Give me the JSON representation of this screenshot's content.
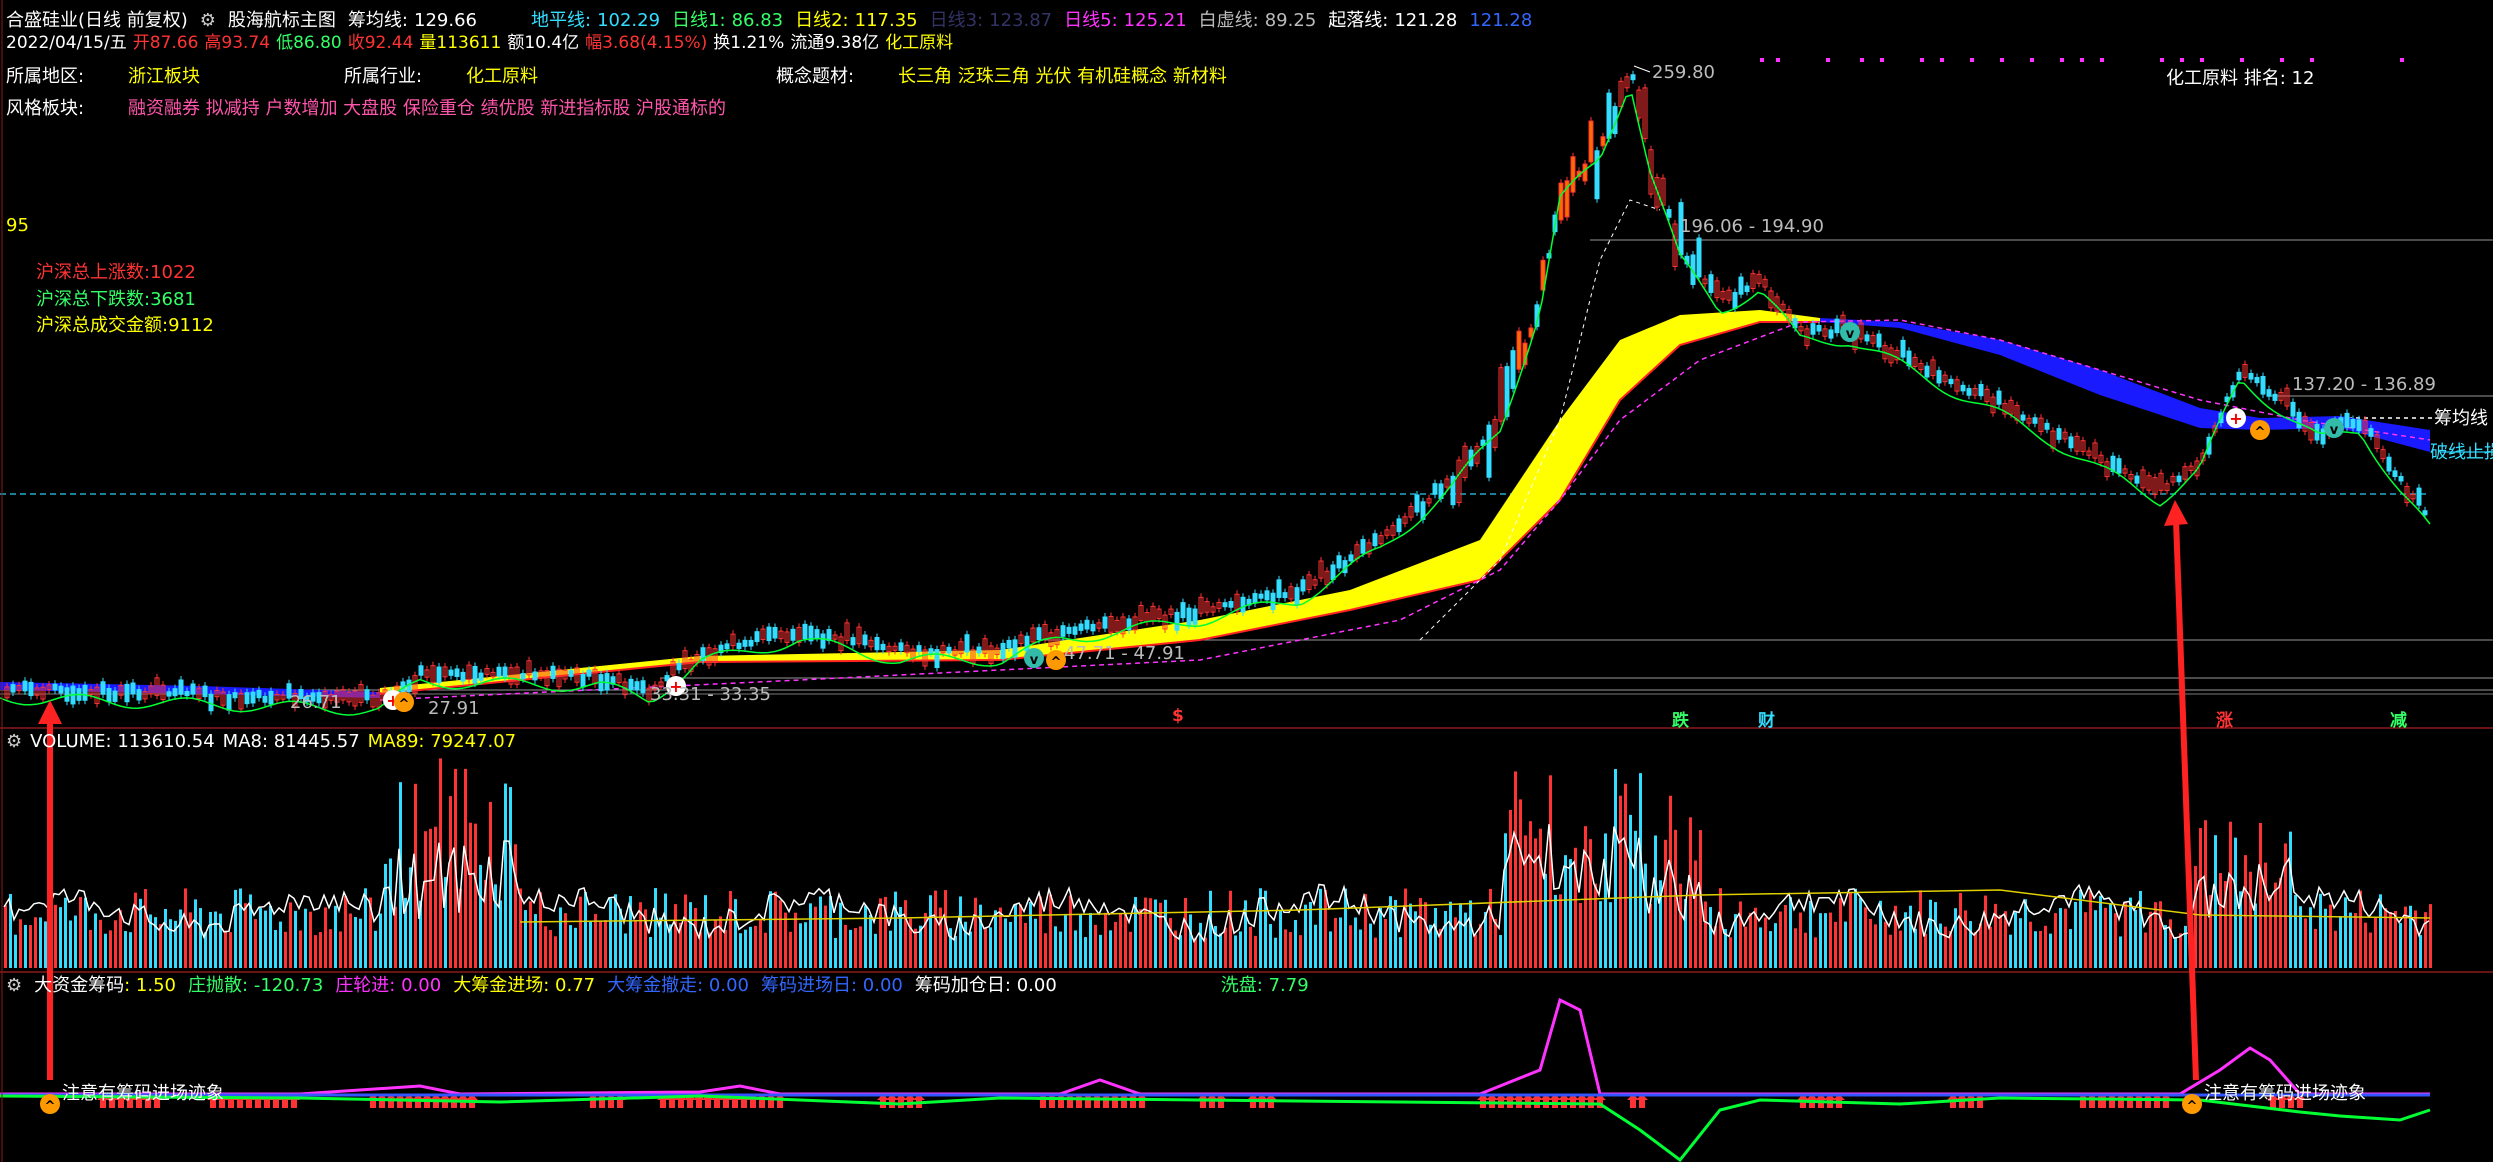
{
  "header": {
    "stock_name": "合盛硅业(日线 前复权)",
    "indicator_name": "股海航标主图",
    "chouyun": {
      "label": "筹均线:",
      "value": "129.66"
    },
    "dipingxian": {
      "label": "地平线:",
      "value": "102.29"
    },
    "rixian1": {
      "label": "日线1:",
      "value": "86.83"
    },
    "rixian2": {
      "label": "日线2:",
      "value": "117.35"
    },
    "rixian3": {
      "label": "日线3:",
      "value": "123.87"
    },
    "rixian5": {
      "label": "日线5:",
      "value": "125.21"
    },
    "baixuxian": {
      "label": "白虚线:",
      "value": "89.25"
    },
    "qiluoxian": {
      "label": "起落线:",
      "value": "121.28"
    },
    "trailing_value": "121.28"
  },
  "quote": {
    "date": "2022/04/15/五",
    "open": {
      "label": "开",
      "value": "87.66"
    },
    "high": {
      "label": "高",
      "value": "93.74"
    },
    "low": {
      "label": "低",
      "value": "86.80"
    },
    "close": {
      "label": "收",
      "value": "92.44"
    },
    "volume": {
      "label": "量",
      "value": "113611"
    },
    "amount": {
      "label": "额",
      "value": "10.4亿"
    },
    "change": {
      "label": "幅",
      "value": "3.68(4.15%)"
    },
    "turnover": {
      "label": "换",
      "value": "1.21%"
    },
    "float": {
      "label": "流通",
      "value": "9.38亿"
    },
    "sector": "化工原料"
  },
  "info": {
    "region_label": "所属地区:",
    "region_value": "浙江板块",
    "industry_label": "所属行业:",
    "industry_value": "化工原料",
    "concept_label": "概念题材:",
    "concept_value": "长三角 泛珠三角 光伏 有机硅概念 新材料",
    "style_label": "风格板块:",
    "style_value": "融资融券 拟减持 户数增加 大盘股 保险重仓 绩优股 新进指标股 沪股通标的",
    "rank_text": "化工原料 排名: 12"
  },
  "market_stats": {
    "score": "95",
    "up_count": "沪深总上涨数:1022",
    "down_count": "沪深总下跌数:3681",
    "turnover": "沪深总成交金额:9112"
  },
  "price_annotations": {
    "peak": "259.80",
    "band1": "196.06 - 194.90",
    "band2": "137.20 - 136.89",
    "band3": "47.71 - 47.91",
    "band4": "33.31 - 33.35",
    "low1": "26.71",
    "low2": "27.91",
    "chouyun_label": "筹均线",
    "pokong_label": "破线止损"
  },
  "event_markers": [
    {
      "text": "$",
      "color": "#ff3333"
    },
    {
      "text": "跌",
      "color": "#33ff66"
    },
    {
      "text": "财",
      "color": "#33ddff"
    },
    {
      "text": "涨",
      "color": "#ff3333"
    },
    {
      "text": "减",
      "color": "#33ff66"
    }
  ],
  "volume_panel": {
    "title": "VOLUME:",
    "value": "113610.54",
    "ma8_label": "MA8:",
    "ma8_value": "81445.57",
    "ma89_label": "MA89:",
    "ma89_value": "79247.07"
  },
  "capital_panel": {
    "title": "大资金筹码",
    "v1": ": 1.50",
    "zhuang_label": "庄抛散:",
    "zhuang_value": "-120.73",
    "zhuangjin_label": "庄轮进:",
    "zhuangjin_value": "0.00",
    "dachou_label": "大筹金进场:",
    "dachou_value": "0.77",
    "dachou_sell_label": "大筹金撤走:",
    "dachou_sell_value": "0.00",
    "chou_in_label": "筹码进场日:",
    "chou_in_value": "0.00",
    "add_label": "筹码加仓日:",
    "add_value": "0.00",
    "wash_label": "洗盘:",
    "wash_value": "7.79",
    "note1": "注意有筹码进场迹象",
    "note2": "注意有筹码进场迹象"
  },
  "colors": {
    "up": "#ff3333",
    "down": "#33ddff",
    "yellow_band": "#ffff00",
    "blue_band": "#1a1aff",
    "green_line": "#00ff33",
    "magenta_line": "#ff33ff"
  }
}
